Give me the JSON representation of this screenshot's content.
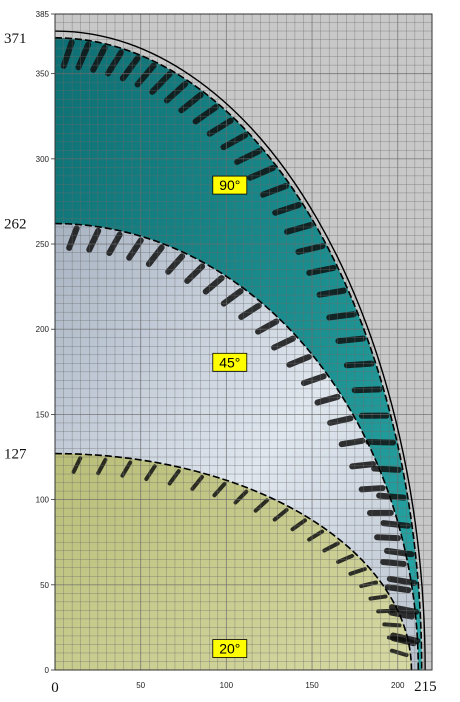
{
  "axes": {
    "x_ticks": [
      "0",
      "50",
      "100",
      "150",
      "200"
    ],
    "x_ticks_values": [
      0,
      50,
      100,
      150,
      200
    ],
    "y_ticks": [
      "0",
      "50",
      "100",
      "150",
      "200",
      "250",
      "300",
      "350",
      "385"
    ],
    "y_ticks_values": [
      0,
      50,
      100,
      150,
      200,
      250,
      300,
      350,
      385
    ],
    "x_max_label": "215",
    "y_marks": [
      {
        "label": "371",
        "value": 371
      },
      {
        "label": "262",
        "value": 262
      },
      {
        "label": "127",
        "value": 127
      }
    ],
    "x_origin_label": "0"
  },
  "zones": [
    {
      "label": "90°",
      "radius": 371,
      "color": "#1f9a9a",
      "label_at": [
        102,
        284
      ]
    },
    {
      "label": "45°",
      "radius": 262,
      "color": "#c9d5e2",
      "label_at": [
        102,
        180
      ]
    },
    {
      "label": "20°",
      "radius": 127,
      "color": "#c7cd8a",
      "label_at": [
        102,
        12
      ]
    }
  ],
  "colors": {
    "grid_bg": "#c8c8c8",
    "grid_line": "#6b6b6b",
    "label_box": "#ffff00",
    "boundary": "#000000"
  }
}
